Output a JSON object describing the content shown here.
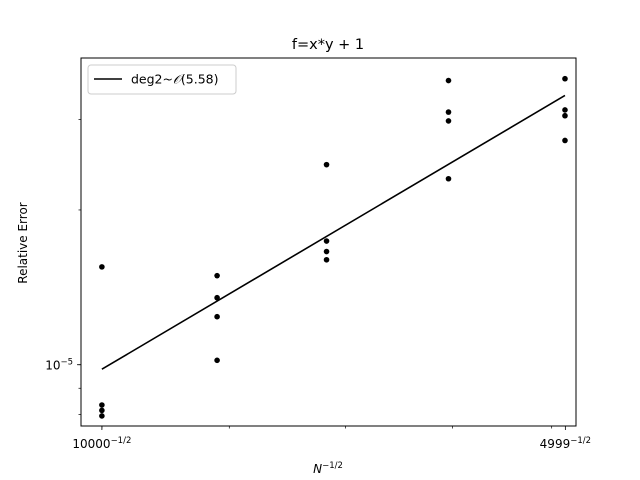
{
  "chart_data": {
    "type": "scatter",
    "title": "f=x*y + 1",
    "xlabel_base": "N",
    "xlabel_exp": "−1/2",
    "ylabel": "Relative Error",
    "x_scale": "log",
    "y_scale": "log",
    "xlim": [
      0.009845,
      0.014257
    ],
    "ylim": [
      7.6e-06,
      3.95e-05
    ],
    "x_ticks": [
      {
        "value": 0.01,
        "base": "10000",
        "exp": "−1/2"
      },
      {
        "value": 0.014144,
        "base": "4999",
        "exp": "−1/2"
      }
    ],
    "y_ticks": [
      {
        "value": 1e-05,
        "base": "10",
        "exp": "−5"
      }
    ],
    "legend": {
      "position": "top-left",
      "entries": [
        {
          "label": "deg2~",
          "label_math": "𝒪",
          "label_arg": "(5.58)"
        }
      ]
    },
    "series": [
      {
        "name": "samples",
        "kind": "points",
        "color": "#000000",
        "points": [
          {
            "x": 0.01,
            "y": 1.55e-05
          },
          {
            "x": 0.01,
            "y": 8.35e-06
          },
          {
            "x": 0.01,
            "y": 8.15e-06
          },
          {
            "x": 0.01,
            "y": 7.95e-06
          },
          {
            "x": 0.0109,
            "y": 1.49e-05
          },
          {
            "x": 0.0109,
            "y": 1.35e-05
          },
          {
            "x": 0.0109,
            "y": 1.24e-05
          },
          {
            "x": 0.0109,
            "y": 1.02e-05
          },
          {
            "x": 0.01183,
            "y": 2.45e-05
          },
          {
            "x": 0.01183,
            "y": 1.74e-05
          },
          {
            "x": 0.01183,
            "y": 1.66e-05
          },
          {
            "x": 0.01183,
            "y": 1.6e-05
          },
          {
            "x": 0.01296,
            "y": 3.57e-05
          },
          {
            "x": 0.01296,
            "y": 3.1e-05
          },
          {
            "x": 0.01296,
            "y": 2.98e-05
          },
          {
            "x": 0.01296,
            "y": 2.3e-05
          },
          {
            "x": 0.01414,
            "y": 3.6e-05
          },
          {
            "x": 0.01414,
            "y": 3.13e-05
          },
          {
            "x": 0.01414,
            "y": 3.05e-05
          },
          {
            "x": 0.01414,
            "y": 2.73e-05
          }
        ]
      },
      {
        "name": "deg2~𝒪(5.58)",
        "kind": "line",
        "color": "#000000",
        "points": [
          {
            "x": 0.01,
            "y": 9.8e-06
          },
          {
            "x": 0.01414,
            "y": 3.34e-05
          }
        ]
      }
    ]
  }
}
